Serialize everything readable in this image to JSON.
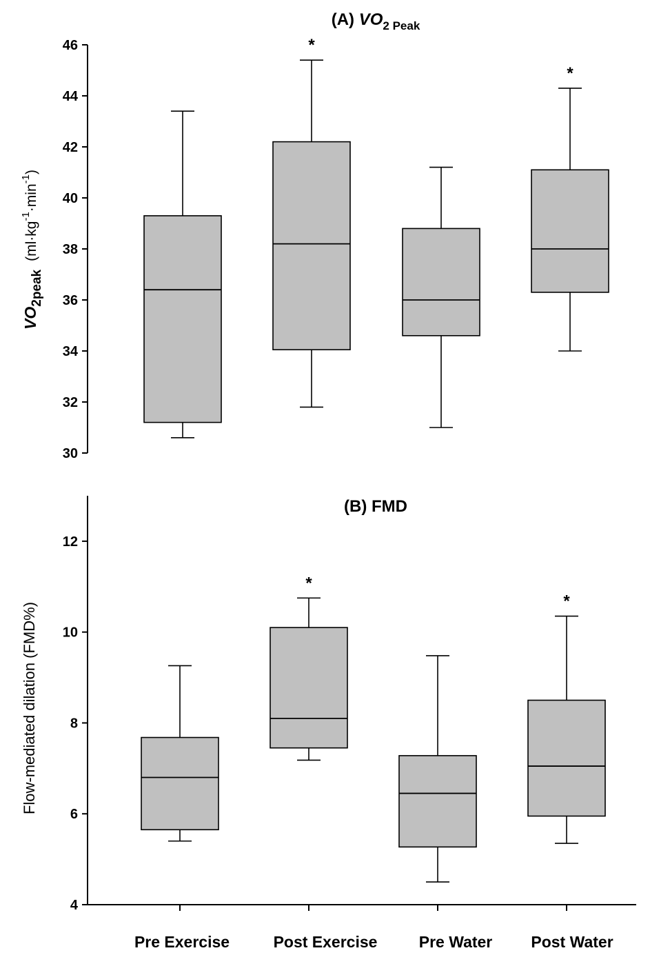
{
  "figure": {
    "categories": [
      "Pre Exercise",
      "Post Exercise",
      "Pre Water",
      "Post Water"
    ]
  },
  "chart_data": [
    {
      "type": "box",
      "panel": "A",
      "title": {
        "prefix": "(A) ",
        "main": "VO",
        "sub": "2 Peak"
      },
      "ylabel": {
        "main": "VO",
        "sub": "2peak",
        "units": "(ml·kg",
        "exp1": "-1",
        "mid": "·min",
        "exp2": "-1",
        "close": ")"
      },
      "ylim": [
        30,
        46
      ],
      "yticks": [
        30,
        32,
        34,
        36,
        38,
        40,
        42,
        44,
        46
      ],
      "categories": [
        "Pre Exercise",
        "Post Exercise",
        "Pre Water",
        "Post Water"
      ],
      "boxes": [
        {
          "category": "Pre Exercise",
          "whisker_low": 30.6,
          "q1": 31.2,
          "median": 36.4,
          "q3": 39.3,
          "whisker_high": 43.4,
          "significant": false
        },
        {
          "category": "Post Exercise",
          "whisker_low": 31.8,
          "q1": 34.05,
          "median": 38.2,
          "q3": 42.2,
          "whisker_high": 45.4,
          "significant": true
        },
        {
          "category": "Pre Water",
          "whisker_low": 31.0,
          "q1": 34.6,
          "median": 36.0,
          "q3": 38.8,
          "whisker_high": 41.2,
          "significant": false
        },
        {
          "category": "Post Water",
          "whisker_low": 34.0,
          "q1": 36.3,
          "median": 38.0,
          "q3": 41.1,
          "whisker_high": 44.3,
          "significant": true
        }
      ],
      "significance_marker": "*",
      "box_fill": "#c0c0c0",
      "grid": false
    },
    {
      "type": "box",
      "panel": "B",
      "title": {
        "prefix": "(B) ",
        "main": "FMD"
      },
      "ylabel": {
        "text": "Flow-mediated dilation (FMD%)"
      },
      "ylim": [
        4,
        13
      ],
      "yticks": [
        4,
        6,
        8,
        10,
        12
      ],
      "categories": [
        "Pre Exercise",
        "Post Exercise",
        "Pre Water",
        "Post Water"
      ],
      "boxes": [
        {
          "category": "Pre Exercise",
          "whisker_low": 5.4,
          "q1": 5.65,
          "median": 6.8,
          "q3": 7.68,
          "whisker_high": 9.26,
          "significant": false
        },
        {
          "category": "Post Exercise",
          "whisker_low": 7.18,
          "q1": 7.45,
          "median": 8.1,
          "q3": 10.1,
          "whisker_high": 10.75,
          "significant": true
        },
        {
          "category": "Pre Water",
          "whisker_low": 4.5,
          "q1": 5.27,
          "median": 6.45,
          "q3": 7.28,
          "whisker_high": 9.48,
          "significant": false
        },
        {
          "category": "Post Water",
          "whisker_low": 5.35,
          "q1": 5.95,
          "median": 7.05,
          "q3": 8.5,
          "whisker_high": 10.35,
          "significant": true
        }
      ],
      "significance_marker": "*",
      "box_fill": "#c0c0c0",
      "grid": false
    }
  ]
}
